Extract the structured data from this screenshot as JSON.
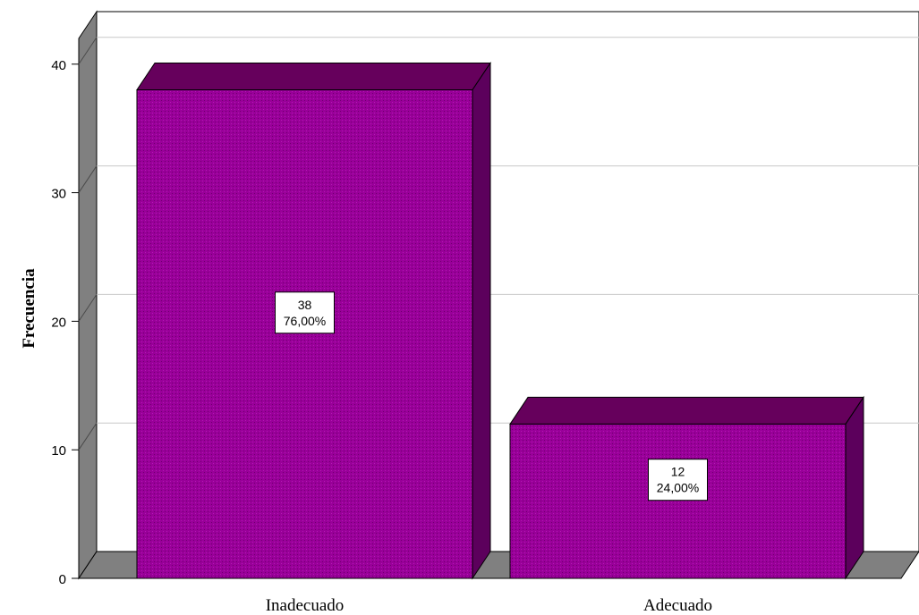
{
  "chart_data": {
    "type": "bar",
    "categories": [
      "Inadecuado",
      "Adecuado"
    ],
    "values": [
      38,
      12
    ],
    "percent_labels": [
      "76,00%",
      "24,00%"
    ],
    "title": "",
    "xlabel": "",
    "ylabel": "Frecuencia",
    "ylim": [
      0,
      42
    ],
    "yticks": [
      "0",
      "10",
      "20",
      "30",
      "40"
    ],
    "grid": true,
    "style": "3d",
    "colors": {
      "bar_front": "#990099",
      "bar_side": "#5c005c",
      "bar_top": "#66005c",
      "wall_side": "#808080",
      "gridline": "#c8c8c8"
    }
  }
}
